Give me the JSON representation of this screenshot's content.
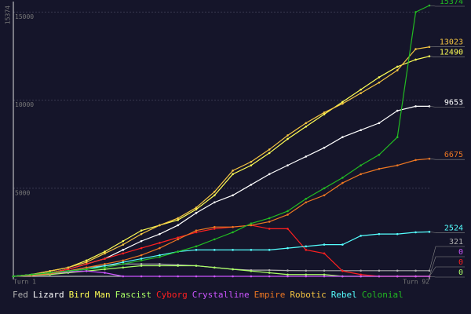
{
  "chart_data": {
    "type": "line",
    "x": [
      1,
      5,
      9,
      13,
      17,
      21,
      25,
      29,
      33,
      37,
      41,
      45,
      49,
      53,
      57,
      61,
      65,
      69,
      73,
      77,
      81,
      85,
      89,
      92
    ],
    "xlim": [
      1,
      92
    ],
    "xticks": [
      {
        "value": 1,
        "label": "Turn 1"
      },
      {
        "value": 92,
        "label": "Turn 92"
      }
    ],
    "ylim": [
      0,
      15374
    ],
    "yticks": [
      5000,
      10000,
      15000
    ],
    "grid": true,
    "series": [
      {
        "name": "Fed",
        "color": "#b0b0b0",
        "values": [
          0,
          50,
          150,
          300,
          500,
          600,
          700,
          700,
          700,
          650,
          600,
          500,
          400,
          350,
          350,
          330,
          321,
          321,
          321,
          321,
          321,
          321,
          321,
          321
        ]
      },
      {
        "name": "Lizard",
        "color": "#ffffff",
        "values": [
          0,
          100,
          200,
          400,
          700,
          1000,
          1500,
          2000,
          2400,
          2900,
          3600,
          4200,
          4600,
          5200,
          5800,
          6300,
          6800,
          7300,
          7900,
          8300,
          8700,
          9400,
          9653,
          9653
        ]
      },
      {
        "name": "Bird Man",
        "color": "#ffff55",
        "values": [
          0,
          100,
          300,
          500,
          900,
          1400,
          2000,
          2600,
          2900,
          3200,
          3800,
          4600,
          5800,
          6300,
          7000,
          7800,
          8500,
          9200,
          9900,
          10600,
          11300,
          11900,
          12300,
          12490
        ]
      },
      {
        "name": "Fascist",
        "color": "#aaff66",
        "values": [
          0,
          50,
          100,
          200,
          300,
          400,
          500,
          600,
          600,
          600,
          600,
          500,
          400,
          300,
          200,
          100,
          100,
          100,
          0,
          0,
          0,
          0,
          0,
          0
        ]
      },
      {
        "name": "Cyborg",
        "color": "#ff2020",
        "values": [
          0,
          100,
          200,
          400,
          700,
          1000,
          1300,
          1600,
          1900,
          2200,
          2500,
          2700,
          2800,
          2900,
          2700,
          2700,
          1500,
          1300,
          300,
          100,
          0,
          0,
          0,
          0
        ]
      },
      {
        "name": "Crystalline",
        "color": "#cc55ff",
        "values": [
          0,
          50,
          150,
          250,
          300,
          200,
          0,
          0,
          0,
          0,
          0,
          0,
          0,
          0,
          0,
          0,
          0,
          0,
          0,
          0,
          0,
          0,
          0,
          0
        ]
      },
      {
        "name": "Empire",
        "color": "#ee7722",
        "values": [
          0,
          50,
          150,
          300,
          500,
          700,
          900,
          1200,
          1600,
          2100,
          2600,
          2800,
          2800,
          2900,
          3100,
          3500,
          4200,
          4600,
          5300,
          5800,
          6100,
          6300,
          6600,
          6675
        ]
      },
      {
        "name": "Robotic",
        "color": "#f5c542",
        "values": [
          0,
          100,
          300,
          500,
          800,
          1300,
          1800,
          2400,
          2900,
          3300,
          3900,
          4800,
          6000,
          6500,
          7200,
          8000,
          8700,
          9300,
          9800,
          10400,
          11000,
          11700,
          12900,
          13023
        ]
      },
      {
        "name": "Rebel",
        "color": "#55ffff",
        "values": [
          0,
          100,
          200,
          300,
          400,
          600,
          800,
          1000,
          1200,
          1400,
          1500,
          1500,
          1500,
          1500,
          1500,
          1600,
          1700,
          1800,
          1800,
          2300,
          2400,
          2400,
          2500,
          2524
        ]
      },
      {
        "name": "Colonial",
        "color": "#22bb22",
        "values": [
          0,
          100,
          200,
          300,
          400,
          500,
          700,
          900,
          1100,
          1400,
          1700,
          2100,
          2500,
          3000,
          3300,
          3700,
          4400,
          5000,
          5600,
          6300,
          6900,
          7900,
          15000,
          15374
        ]
      }
    ]
  }
}
